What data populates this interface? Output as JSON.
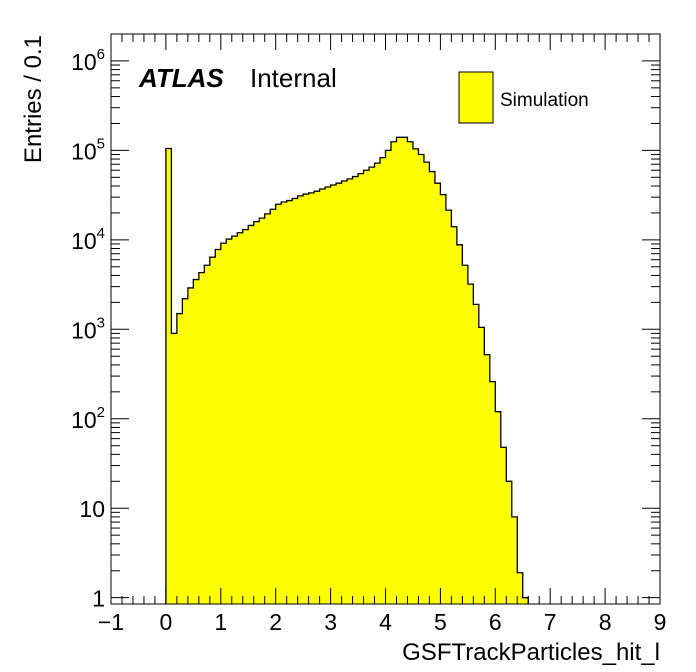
{
  "chart_data": {
    "type": "bar",
    "style": "histogram",
    "xlabel": "GSFTrackParticles_hit_l",
    "ylabel": "Entries / 0.1",
    "yscale": "log",
    "xlim": [
      -1,
      9
    ],
    "ylim": [
      0.85,
      2000000
    ],
    "bin_width": 0.1,
    "x_ticks": [
      "−1",
      "0",
      "1",
      "2",
      "3",
      "4",
      "5",
      "6",
      "7",
      "8",
      "9"
    ],
    "x_tick_values": [
      -1,
      0,
      1,
      2,
      3,
      4,
      5,
      6,
      7,
      8,
      9
    ],
    "y_ticks": [
      {
        "value": 1,
        "base": "1",
        "exp": ""
      },
      {
        "value": 10,
        "base": "10",
        "exp": ""
      },
      {
        "value": 100,
        "base": "10",
        "exp": "2"
      },
      {
        "value": 1000,
        "base": "10",
        "exp": "3"
      },
      {
        "value": 10000,
        "base": "10",
        "exp": "4"
      },
      {
        "value": 100000,
        "base": "10",
        "exp": "5"
      },
      {
        "value": 1000000,
        "base": "10",
        "exp": "6"
      }
    ],
    "atlas_label": "ATLAS",
    "atlas_status": "Internal",
    "fill_color": "#ffff00",
    "line_color": "#000000",
    "legend_position": "top-right",
    "series": [
      {
        "name": "Simulation",
        "bin_edges_start": 0.0,
        "values": [
          105000,
          900,
          1500,
          2200,
          2900,
          3600,
          4300,
          5200,
          6400,
          7800,
          9200,
          10200,
          11000,
          12000,
          13000,
          14500,
          16000,
          17500,
          19500,
          22000,
          25000,
          26500,
          27500,
          29000,
          31000,
          32500,
          33500,
          35000,
          37000,
          39000,
          41000,
          43000,
          45500,
          48000,
          51000,
          55000,
          60000,
          65000,
          72000,
          83000,
          100000,
          125000,
          140000,
          140000,
          125000,
          104000,
          90000,
          74000,
          58000,
          43000,
          32000,
          21500,
          14000,
          8800,
          5200,
          3200,
          1900,
          1050,
          520,
          260,
          120,
          48,
          20,
          8,
          1.9,
          1
        ]
      }
    ]
  }
}
